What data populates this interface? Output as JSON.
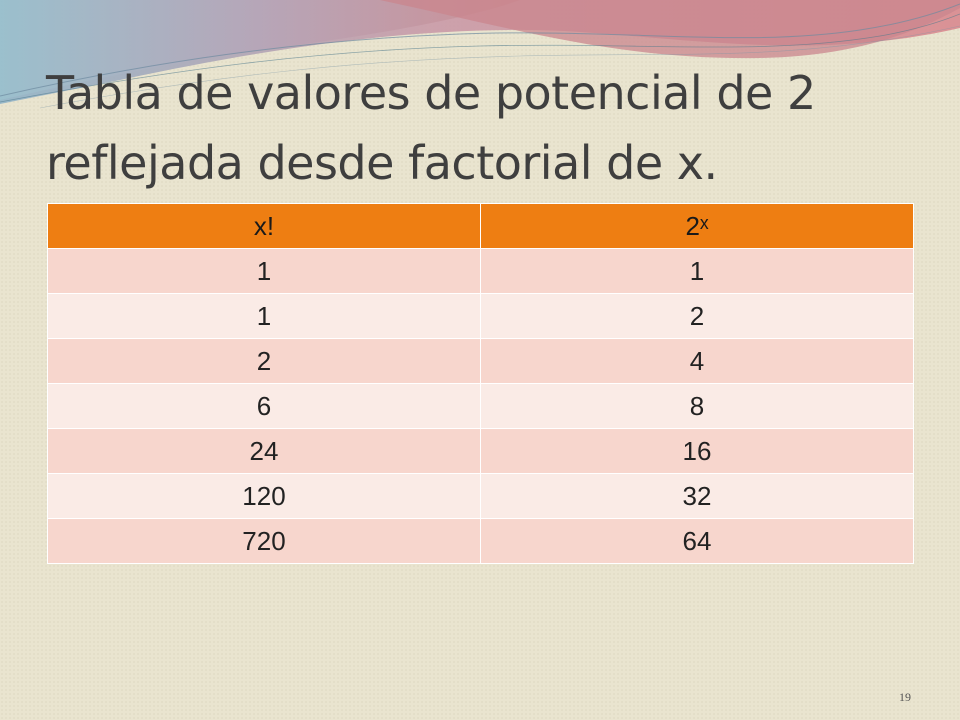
{
  "slide": {
    "title": "Tabla de valores de potencial de 2 reflejada desde factorial de x.",
    "page_number": "19"
  },
  "table": {
    "headers": [
      "x!",
      "2ˣ"
    ],
    "rows": [
      [
        "1",
        "1"
      ],
      [
        "1",
        "2"
      ],
      [
        "2",
        "4"
      ],
      [
        "6",
        "8"
      ],
      [
        "24",
        "16"
      ],
      [
        "120",
        "32"
      ],
      [
        "720",
        "64"
      ]
    ]
  },
  "colors": {
    "background": "#e9e4cf",
    "header": "#ee7e12",
    "row_dark": "#f7d6cd",
    "row_light": "#faebe6",
    "title_text": "#3f3f3f"
  }
}
